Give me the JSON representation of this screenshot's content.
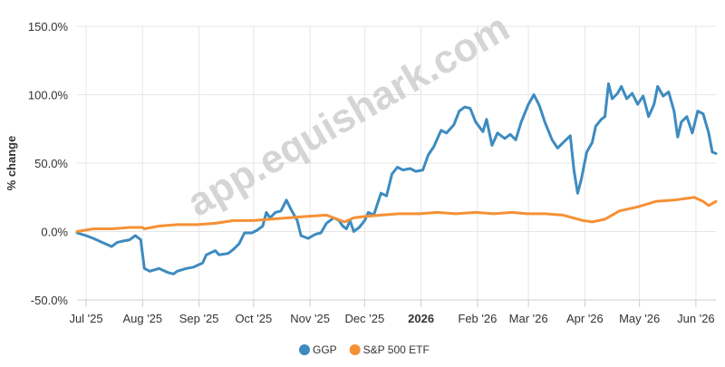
{
  "watermark": "app.equishark.com",
  "colors": {
    "ggp": "#3d8bc0",
    "spy": "#f59135",
    "grid": "#e6e6e6",
    "axis": "#cccccc",
    "text": "#333333"
  },
  "chart_data": {
    "type": "line",
    "ylabel": "% change",
    "ylim": [
      -50,
      150
    ],
    "y_ticks": [
      {
        "value": -50,
        "label": "-50.0%"
      },
      {
        "value": 0,
        "label": "0.0%"
      },
      {
        "value": 50,
        "label": "50.0%"
      },
      {
        "value": 100,
        "label": "100.0%"
      },
      {
        "value": 150,
        "label": "150.0%"
      }
    ],
    "x_ticks": [
      {
        "date": "2025-07-01",
        "label": "Jul '25",
        "bold": false
      },
      {
        "date": "2025-08-01",
        "label": "Aug '25",
        "bold": false
      },
      {
        "date": "2025-09-01",
        "label": "Sep '25",
        "bold": false
      },
      {
        "date": "2025-10-01",
        "label": "Oct '25",
        "bold": false
      },
      {
        "date": "2025-11-01",
        "label": "Nov '25",
        "bold": false
      },
      {
        "date": "2025-12-01",
        "label": "Dec '25",
        "bold": false
      },
      {
        "date": "2026-01-01",
        "label": "2026",
        "bold": true
      },
      {
        "date": "2026-02-01",
        "label": "Feb '26",
        "bold": false
      },
      {
        "date": "2026-03-01",
        "label": "Mar '26",
        "bold": false
      },
      {
        "date": "2026-04-01",
        "label": "Apr '26",
        "bold": false
      },
      {
        "date": "2026-05-01",
        "label": "May '26",
        "bold": false
      },
      {
        "date": "2026-06-01",
        "label": "Jun '26",
        "bold": false
      }
    ],
    "x_range": [
      "2025-06-26",
      "2026-06-12"
    ],
    "grid": true,
    "legend_position": "bottom-center",
    "series": [
      {
        "name": "GGP",
        "color": "#3d8bc0",
        "points": [
          [
            "2025-06-26",
            -1
          ],
          [
            "2025-07-01",
            -3
          ],
          [
            "2025-07-05",
            -5
          ],
          [
            "2025-07-10",
            -8
          ],
          [
            "2025-07-15",
            -11
          ],
          [
            "2025-07-18",
            -8
          ],
          [
            "2025-07-21",
            -7
          ],
          [
            "2025-07-25",
            -6
          ],
          [
            "2025-07-28",
            -3
          ],
          [
            "2025-07-31",
            -6
          ],
          [
            "2025-08-02",
            -27
          ],
          [
            "2025-08-05",
            -29
          ],
          [
            "2025-08-10",
            -27
          ],
          [
            "2025-08-15",
            -30
          ],
          [
            "2025-08-18",
            -31
          ],
          [
            "2025-08-20",
            -29
          ],
          [
            "2025-08-25",
            -27
          ],
          [
            "2025-08-29",
            -26
          ],
          [
            "2025-09-03",
            -23
          ],
          [
            "2025-09-05",
            -17
          ],
          [
            "2025-09-10",
            -14
          ],
          [
            "2025-09-12",
            -17
          ],
          [
            "2025-09-17",
            -16
          ],
          [
            "2025-09-20",
            -13
          ],
          [
            "2025-09-23",
            -9
          ],
          [
            "2025-09-26",
            -1
          ],
          [
            "2025-09-30",
            -1
          ],
          [
            "2025-10-03",
            1
          ],
          [
            "2025-10-06",
            4
          ],
          [
            "2025-10-08",
            14
          ],
          [
            "2025-10-10",
            10
          ],
          [
            "2025-10-13",
            14
          ],
          [
            "2025-10-16",
            15
          ],
          [
            "2025-10-19",
            23
          ],
          [
            "2025-10-22",
            15
          ],
          [
            "2025-10-25",
            8
          ],
          [
            "2025-10-27",
            -3
          ],
          [
            "2025-10-31",
            -5
          ],
          [
            "2025-11-04",
            -2
          ],
          [
            "2025-11-07",
            -1
          ],
          [
            "2025-11-10",
            6
          ],
          [
            "2025-11-12",
            8
          ],
          [
            "2025-11-14",
            10
          ],
          [
            "2025-11-17",
            8
          ],
          [
            "2025-11-19",
            4
          ],
          [
            "2025-11-21",
            2
          ],
          [
            "2025-11-23",
            8
          ],
          [
            "2025-11-25",
            0
          ],
          [
            "2025-11-28",
            3
          ],
          [
            "2025-12-01",
            8
          ],
          [
            "2025-12-03",
            14
          ],
          [
            "2025-12-06",
            12
          ],
          [
            "2025-12-10",
            28
          ],
          [
            "2025-12-13",
            26
          ],
          [
            "2025-12-16",
            42
          ],
          [
            "2025-12-19",
            47
          ],
          [
            "2025-12-22",
            45
          ],
          [
            "2025-12-26",
            46
          ],
          [
            "2025-12-29",
            44
          ],
          [
            "2026-01-02",
            45
          ],
          [
            "2026-01-05",
            56
          ],
          [
            "2026-01-08",
            62
          ],
          [
            "2026-01-12",
            74
          ],
          [
            "2026-01-15",
            72
          ],
          [
            "2026-01-19",
            78
          ],
          [
            "2026-01-22",
            88
          ],
          [
            "2026-01-25",
            91
          ],
          [
            "2026-01-28",
            90
          ],
          [
            "2026-01-31",
            80
          ],
          [
            "2026-02-04",
            73
          ],
          [
            "2026-02-06",
            82
          ],
          [
            "2026-02-09",
            63
          ],
          [
            "2026-02-12",
            72
          ],
          [
            "2026-02-16",
            68
          ],
          [
            "2026-02-19",
            71
          ],
          [
            "2026-02-22",
            67
          ],
          [
            "2026-02-25",
            80
          ],
          [
            "2026-03-01",
            93
          ],
          [
            "2026-03-04",
            100
          ],
          [
            "2026-03-07",
            92
          ],
          [
            "2026-03-10",
            80
          ],
          [
            "2026-03-14",
            67
          ],
          [
            "2026-03-17",
            61
          ],
          [
            "2026-03-20",
            65
          ],
          [
            "2026-03-24",
            70
          ],
          [
            "2026-03-26",
            45
          ],
          [
            "2026-03-28",
            28
          ],
          [
            "2026-03-30",
            38
          ],
          [
            "2026-04-02",
            58
          ],
          [
            "2026-04-05",
            65
          ],
          [
            "2026-04-07",
            77
          ],
          [
            "2026-04-10",
            82
          ],
          [
            "2026-04-12",
            84
          ],
          [
            "2026-04-14",
            108
          ],
          [
            "2026-04-16",
            97
          ],
          [
            "2026-04-19",
            101
          ],
          [
            "2026-04-21",
            106
          ],
          [
            "2026-04-24",
            97
          ],
          [
            "2026-04-27",
            101
          ],
          [
            "2026-04-30",
            93
          ],
          [
            "2026-05-03",
            99
          ],
          [
            "2026-05-06",
            84
          ],
          [
            "2026-05-09",
            93
          ],
          [
            "2026-05-11",
            106
          ],
          [
            "2026-05-14",
            99
          ],
          [
            "2026-05-17",
            102
          ],
          [
            "2026-05-20",
            88
          ],
          [
            "2026-05-22",
            69
          ],
          [
            "2026-05-24",
            80
          ],
          [
            "2026-05-27",
            84
          ],
          [
            "2026-05-30",
            72
          ],
          [
            "2026-06-02",
            88
          ],
          [
            "2026-06-05",
            86
          ],
          [
            "2026-06-08",
            72
          ],
          [
            "2026-06-10",
            58
          ],
          [
            "2026-06-12",
            57
          ]
        ]
      },
      {
        "name": "S&P 500 ETF",
        "color": "#f59135",
        "points": [
          [
            "2025-06-26",
            0
          ],
          [
            "2025-07-05",
            2
          ],
          [
            "2025-07-15",
            2
          ],
          [
            "2025-07-25",
            3
          ],
          [
            "2025-08-01",
            3
          ],
          [
            "2025-08-02",
            2
          ],
          [
            "2025-08-10",
            4
          ],
          [
            "2025-08-20",
            5
          ],
          [
            "2025-08-31",
            5
          ],
          [
            "2025-09-10",
            6
          ],
          [
            "2025-09-20",
            8
          ],
          [
            "2025-10-01",
            8
          ],
          [
            "2025-10-10",
            9
          ],
          [
            "2025-10-20",
            10
          ],
          [
            "2025-10-30",
            11
          ],
          [
            "2025-11-10",
            12
          ],
          [
            "2025-11-20",
            7
          ],
          [
            "2025-11-25",
            10
          ],
          [
            "2025-12-01",
            11
          ],
          [
            "2025-12-10",
            12
          ],
          [
            "2025-12-20",
            13
          ],
          [
            "2025-12-31",
            13
          ],
          [
            "2026-01-10",
            14
          ],
          [
            "2026-01-20",
            13
          ],
          [
            "2026-01-31",
            14
          ],
          [
            "2026-02-10",
            13
          ],
          [
            "2026-02-20",
            14
          ],
          [
            "2026-02-28",
            13
          ],
          [
            "2026-03-10",
            13
          ],
          [
            "2026-03-20",
            12
          ],
          [
            "2026-03-31",
            8
          ],
          [
            "2026-04-05",
            7
          ],
          [
            "2026-04-12",
            9
          ],
          [
            "2026-04-20",
            15
          ],
          [
            "2026-04-30",
            18
          ],
          [
            "2026-05-10",
            22
          ],
          [
            "2026-05-20",
            23
          ],
          [
            "2026-05-31",
            25
          ],
          [
            "2026-06-05",
            22
          ],
          [
            "2026-06-08",
            19
          ],
          [
            "2026-06-12",
            22
          ]
        ]
      }
    ]
  }
}
